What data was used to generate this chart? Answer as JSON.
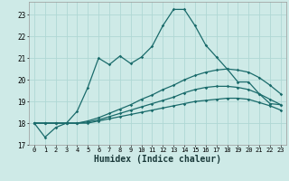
{
  "title": "",
  "xlabel": "Humidex (Indice chaleur)",
  "ylabel": "",
  "bg_color": "#ceeae7",
  "line_color": "#1a6b6b",
  "grid_color": "#afd8d4",
  "xlim": [
    -0.5,
    23.5
  ],
  "ylim": [
    17,
    23.6
  ],
  "yticks": [
    17,
    18,
    19,
    20,
    21,
    22,
    23
  ],
  "xticks": [
    0,
    1,
    2,
    3,
    4,
    5,
    6,
    7,
    8,
    9,
    10,
    11,
    12,
    13,
    14,
    15,
    16,
    17,
    18,
    19,
    20,
    21,
    22,
    23
  ],
  "line1_y": [
    18.0,
    17.35,
    17.8,
    18.0,
    18.55,
    19.65,
    21.0,
    20.7,
    21.1,
    20.75,
    21.05,
    21.55,
    22.5,
    23.25,
    23.25,
    22.5,
    21.6,
    21.05,
    20.5,
    19.9,
    19.9,
    19.35,
    18.9,
    18.85
  ],
  "line2_y": [
    18.0,
    18.0,
    18.0,
    18.0,
    18.0,
    18.1,
    18.25,
    18.45,
    18.65,
    18.85,
    19.1,
    19.3,
    19.55,
    19.75,
    20.0,
    20.2,
    20.35,
    20.45,
    20.5,
    20.45,
    20.35,
    20.1,
    19.75,
    19.35
  ],
  "line3_y": [
    18.0,
    18.0,
    18.0,
    18.0,
    18.0,
    18.05,
    18.15,
    18.3,
    18.45,
    18.6,
    18.75,
    18.9,
    19.05,
    19.2,
    19.4,
    19.55,
    19.65,
    19.7,
    19.7,
    19.65,
    19.55,
    19.35,
    19.1,
    18.85
  ],
  "line4_y": [
    18.0,
    18.0,
    18.0,
    18.0,
    18.0,
    18.0,
    18.1,
    18.2,
    18.3,
    18.4,
    18.5,
    18.6,
    18.7,
    18.8,
    18.9,
    19.0,
    19.05,
    19.1,
    19.15,
    19.15,
    19.1,
    18.95,
    18.8,
    18.6
  ]
}
